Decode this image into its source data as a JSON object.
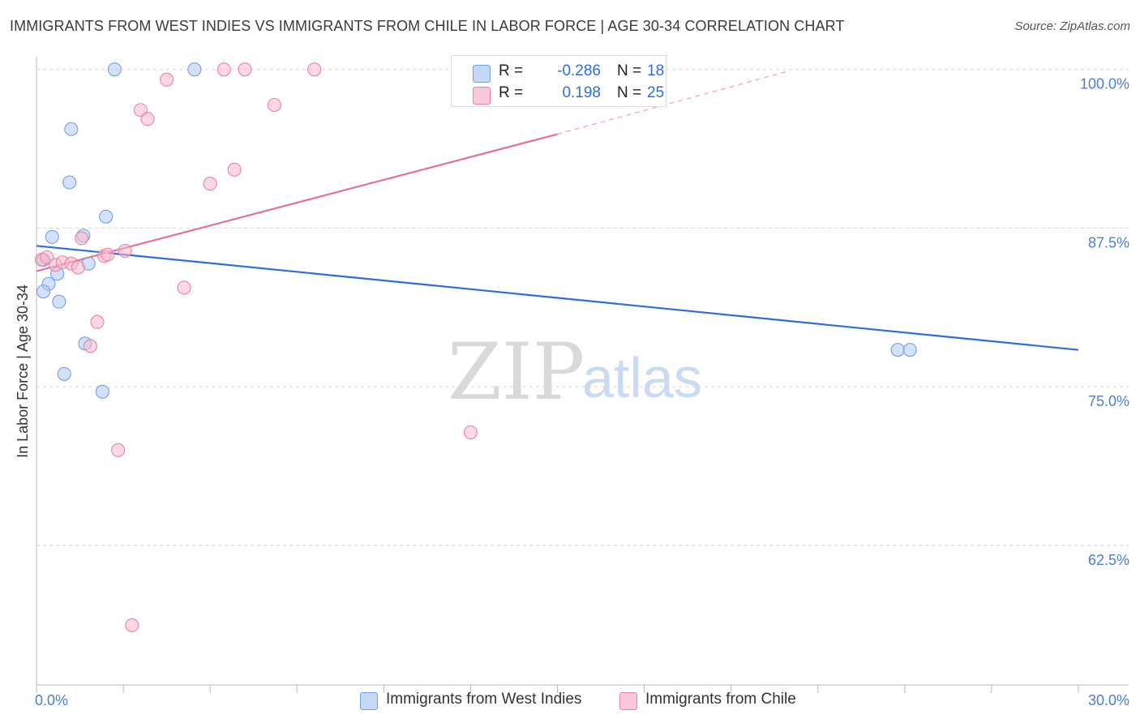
{
  "title": "IMMIGRANTS FROM WEST INDIES VS IMMIGRANTS FROM CHILE IN LABOR FORCE | AGE 30-34 CORRELATION CHART",
  "source": "Source: ZipAtlas.com",
  "watermark": {
    "zip": "ZIP",
    "atlas": "atlas"
  },
  "legend_stats": [
    {
      "r_label": "R =",
      "r_value": "-0.286",
      "n_label": "N =",
      "n_value": "18",
      "color": "#aecbf5"
    },
    {
      "r_label": "R =",
      "r_value": "0.198",
      "n_label": "N =",
      "n_value": "25",
      "color": "#f7b8cb"
    }
  ],
  "bottom_legend": [
    {
      "label": "Immigrants from West Indies",
      "color": "#aecbf5"
    },
    {
      "label": "Immigrants from Chile",
      "color": "#f7b8cb"
    }
  ],
  "chart_data": {
    "type": "scatter",
    "title": "IMMIGRANTS FROM WEST INDIES VS IMMIGRANTS FROM CHILE IN LABOR FORCE | AGE 30-34 CORRELATION CHART",
    "xlabel": "",
    "ylabel": "In Labor Force | Age 30-34",
    "xlim": [
      0,
      30
    ],
    "ylim": [
      51.5,
      101
    ],
    "x_tick_labels": [
      "0.0%",
      "30.0%"
    ],
    "y_ticks": [
      62.5,
      75.0,
      87.5,
      100.0
    ],
    "y_tick_labels": [
      "62.5%",
      "75.0%",
      "87.5%",
      "100.0%"
    ],
    "series": [
      {
        "name": "Immigrants from West Indies",
        "color": "#6fa0e8",
        "fill": "#aecbf5",
        "points": [
          [
            0.2,
            85.0
          ],
          [
            0.45,
            86.8
          ],
          [
            0.35,
            83.1
          ],
          [
            0.2,
            82.5
          ],
          [
            0.6,
            83.9
          ],
          [
            0.65,
            81.7
          ],
          [
            1.0,
            95.3
          ],
          [
            0.95,
            91.1
          ],
          [
            1.35,
            86.9
          ],
          [
            2.0,
            88.4
          ],
          [
            1.5,
            84.7
          ],
          [
            1.4,
            78.4
          ],
          [
            0.8,
            76.0
          ],
          [
            1.9,
            74.6
          ],
          [
            2.25,
            100.0
          ],
          [
            4.55,
            100.0
          ],
          [
            24.8,
            77.9
          ],
          [
            25.15,
            77.9
          ]
        ],
        "trend": {
          "x0": 0,
          "y0": 86.1,
          "x1": 30,
          "y1": 77.9
        }
      },
      {
        "name": "Immigrants from Chile",
        "color": "#ec82a4",
        "fill": "#f7b8cb",
        "points": [
          [
            0.15,
            85.0
          ],
          [
            0.3,
            85.2
          ],
          [
            0.55,
            84.6
          ],
          [
            0.75,
            84.8
          ],
          [
            1.0,
            84.7
          ],
          [
            1.2,
            84.4
          ],
          [
            1.3,
            86.7
          ],
          [
            1.95,
            85.3
          ],
          [
            2.05,
            85.4
          ],
          [
            2.55,
            85.7
          ],
          [
            1.75,
            80.1
          ],
          [
            1.55,
            78.2
          ],
          [
            2.35,
            70.0
          ],
          [
            2.75,
            56.2
          ],
          [
            3.0,
            96.8
          ],
          [
            3.2,
            96.1
          ],
          [
            3.75,
            99.2
          ],
          [
            5.0,
            91.0
          ],
          [
            5.7,
            92.1
          ],
          [
            5.4,
            100.0
          ],
          [
            6.0,
            100.0
          ],
          [
            6.85,
            97.2
          ],
          [
            8.0,
            100.0
          ],
          [
            4.25,
            82.8
          ],
          [
            12.5,
            71.4
          ]
        ],
        "trend": {
          "x0": 0,
          "y0": 84.1,
          "x1": 15,
          "y1": 94.9
        },
        "trend_dashed": {
          "x0": 15,
          "y0": 94.9,
          "x1": 21.7,
          "y1": 99.9
        }
      }
    ]
  }
}
